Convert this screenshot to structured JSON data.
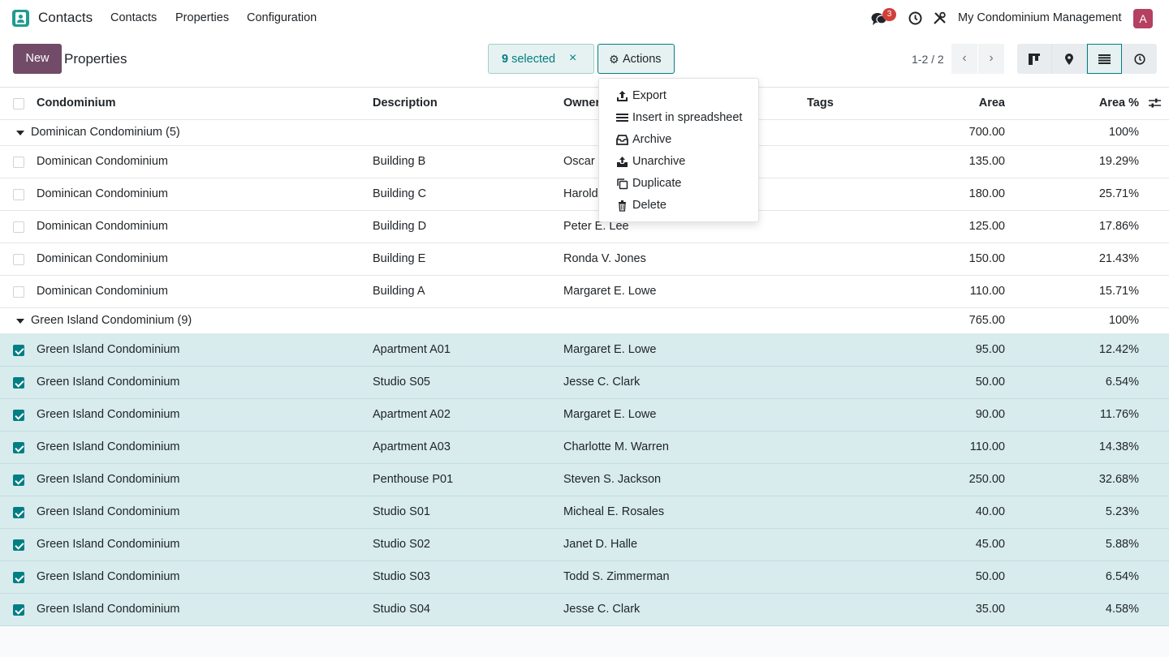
{
  "navbar": {
    "app_name": "Contacts",
    "menu": [
      "Contacts",
      "Properties",
      "Configuration"
    ],
    "messages_count": "3",
    "company": "My Condominium Management",
    "avatar_letter": "A"
  },
  "control": {
    "new_label": "New",
    "breadcrumb": "Properties",
    "selected_count": "9",
    "selected_label": "selected",
    "clear_icon": "×",
    "actions_label": "Actions",
    "pager": "1-2 / 2",
    "prev": "‹",
    "next": "›"
  },
  "actions_menu": [
    {
      "label": "Export",
      "icon": "export-icon"
    },
    {
      "label": "Insert in spreadsheet",
      "icon": "spreadsheet-icon"
    },
    {
      "label": "Archive",
      "icon": "archive-icon"
    },
    {
      "label": "Unarchive",
      "icon": "unarchive-icon"
    },
    {
      "label": "Duplicate",
      "icon": "duplicate-icon"
    },
    {
      "label": "Delete",
      "icon": "trash-icon"
    }
  ],
  "table": {
    "columns": [
      "Condominium",
      "Description",
      "Owner",
      "Tags",
      "Area",
      "Area %"
    ],
    "groups": [
      {
        "label": "Dominican Condominium (5)",
        "area": "700.00",
        "area_pct": "100%",
        "selected": false,
        "rows": [
          [
            "Dominican Condominium",
            "Building B",
            "Oscar",
            "135.00",
            "19.29%"
          ],
          [
            "Dominican Condominium",
            "Building C",
            "Harold",
            "180.00",
            "25.71%"
          ],
          [
            "Dominican Condominium",
            "Building D",
            "Peter E. Lee",
            "125.00",
            "17.86%"
          ],
          [
            "Dominican Condominium",
            "Building E",
            "Ronda V. Jones",
            "150.00",
            "21.43%"
          ],
          [
            "Dominican Condominium",
            "Building A",
            "Margaret E. Lowe",
            "110.00",
            "15.71%"
          ]
        ]
      },
      {
        "label": "Green Island Condominium (9)",
        "area": "765.00",
        "area_pct": "100%",
        "selected": true,
        "rows": [
          [
            "Green Island Condominium",
            "Apartment A01",
            "Margaret E. Lowe",
            "95.00",
            "12.42%"
          ],
          [
            "Green Island Condominium",
            "Studio S05",
            "Jesse C. Clark",
            "50.00",
            "6.54%"
          ],
          [
            "Green Island Condominium",
            "Apartment A02",
            "Margaret E. Lowe",
            "90.00",
            "11.76%"
          ],
          [
            "Green Island Condominium",
            "Apartment A03",
            "Charlotte M. Warren",
            "110.00",
            "14.38%"
          ],
          [
            "Green Island Condominium",
            "Penthouse P01",
            "Steven S. Jackson",
            "250.00",
            "32.68%"
          ],
          [
            "Green Island Condominium",
            "Studio S01",
            "Micheal E. Rosales",
            "40.00",
            "5.23%"
          ],
          [
            "Green Island Condominium",
            "Studio S02",
            "Janet D. Halle",
            "45.00",
            "5.88%"
          ],
          [
            "Green Island Condominium",
            "Studio S03",
            "Todd S. Zimmerman",
            "50.00",
            "6.54%"
          ],
          [
            "Green Island Condominium",
            "Studio S04",
            "Jesse C. Clark",
            "35.00",
            "4.58%"
          ]
        ]
      }
    ]
  },
  "colors": {
    "brand": "#714b67",
    "accent": "#017e84",
    "selected_row": "#d8ebed",
    "badge": "#d23f3a"
  }
}
